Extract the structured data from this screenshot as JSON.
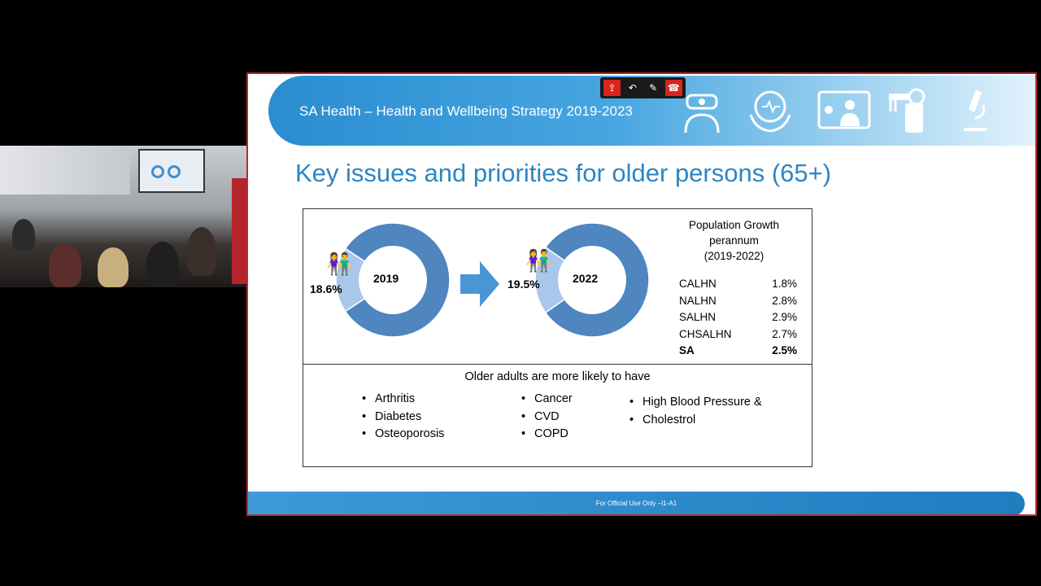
{
  "banner": {
    "title": "SA Health – Health and Wellbeing Strategy 2019-2023"
  },
  "banner_icons": [
    "vr-doctor-icon",
    "heart-hands-icon",
    "telehealth-icon",
    "robot-arm-icon",
    "microscope-icon"
  ],
  "toolbar": {
    "buttons": [
      "share-icon",
      "undo-icon",
      "mute-icon",
      "hang-up-icon"
    ]
  },
  "slide": {
    "heading": "Key issues and priorities for older persons (65+)"
  },
  "chart_data": [
    {
      "type": "pie",
      "title": "2019",
      "slices": [
        {
          "label": "18.6%",
          "value": 18.6
        },
        {
          "value": 81.4
        }
      ]
    },
    {
      "type": "pie",
      "title": "2022",
      "slices": [
        {
          "label": "19.5%",
          "value": 19.5
        },
        {
          "value": 80.5
        }
      ]
    }
  ],
  "growth": {
    "title_lines": [
      "Population Growth",
      "perannum",
      "(2019-2022)"
    ],
    "rows": [
      {
        "region": "CALHN",
        "value": "1.8%"
      },
      {
        "region": "NALHN",
        "value": "2.8%"
      },
      {
        "region": "SALHN",
        "value": "2.9%"
      },
      {
        "region": "CHSALHN",
        "value": "2.7%"
      },
      {
        "region": "SA",
        "value": "2.5%"
      }
    ]
  },
  "conditions": {
    "intro": "Older adults are more likely to have",
    "col1": [
      "Arthritis",
      "Diabetes",
      "Osteoporosis"
    ],
    "col2": [
      "Cancer",
      "CVD",
      "COPD"
    ],
    "col3": [
      "High Blood Pressure &",
      "Cholestrol"
    ]
  },
  "footer": {
    "text": "For Official Use Only –I1-A1"
  },
  "colors": {
    "donut_main": "#4f86bf",
    "donut_slice": "#a9c7ea",
    "accent": "#2c86c4",
    "border": "#c0262d"
  }
}
